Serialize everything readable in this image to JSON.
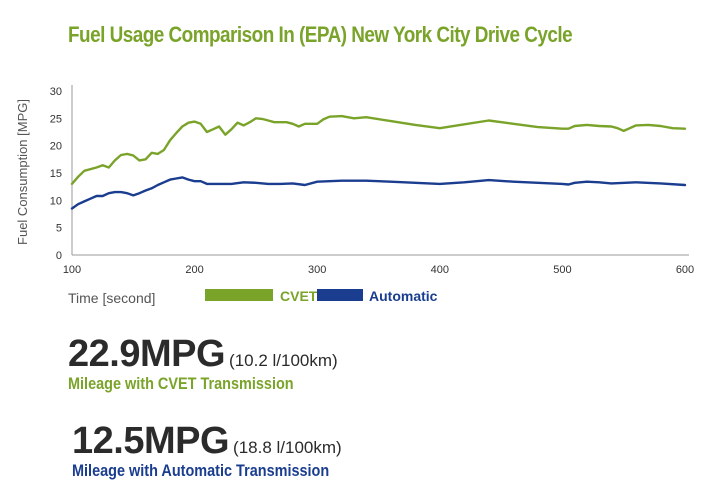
{
  "chart_data": {
    "type": "line",
    "title": "Fuel Usage Comparison In (EPA) New York City Drive Cycle",
    "xlabel": "Time [second]",
    "ylabel": "Fuel Consumption [MPG]",
    "xlim": [
      100,
      600
    ],
    "ylim": [
      0,
      30
    ],
    "xticks": [
      100,
      200,
      300,
      400,
      500,
      600
    ],
    "yticks": [
      0,
      5,
      10,
      15,
      20,
      25,
      30
    ],
    "xtick_labels": [
      "100",
      "200",
      "300",
      "400",
      "500",
      "600"
    ],
    "ytick_labels": [
      "0",
      "5",
      "10",
      "15",
      "20",
      "25",
      "30"
    ],
    "grid": false,
    "legend_position": "bottom",
    "series": [
      {
        "name": "CVET",
        "color": "#7aa32a",
        "x": [
          100,
          105,
          110,
          120,
          125,
          130,
          135,
          140,
          145,
          150,
          155,
          160,
          165,
          170,
          175,
          180,
          185,
          190,
          195,
          200,
          205,
          210,
          215,
          220,
          225,
          230,
          235,
          240,
          245,
          250,
          255,
          260,
          265,
          270,
          275,
          280,
          285,
          290,
          295,
          300,
          305,
          310,
          320,
          330,
          340,
          360,
          380,
          400,
          420,
          440,
          460,
          480,
          500,
          505,
          510,
          520,
          530,
          540,
          545,
          550,
          560,
          570,
          580,
          590,
          600
        ],
        "y": [
          13,
          14.3,
          15.4,
          16,
          16.4,
          16,
          17.3,
          18.3,
          18.5,
          18.2,
          17.3,
          17.5,
          18.7,
          18.5,
          19.2,
          21,
          22.3,
          23.5,
          24.2,
          24.4,
          24,
          22.5,
          23,
          23.5,
          22,
          23,
          24.2,
          23.7,
          24.3,
          25,
          24.9,
          24.6,
          24.3,
          24.3,
          24.3,
          24,
          23.5,
          24,
          24,
          24,
          24.8,
          25.3,
          25.4,
          25,
          25.2,
          24.5,
          23.8,
          23.2,
          23.9,
          24.6,
          24,
          23.4,
          23.1,
          23.1,
          23.6,
          23.8,
          23.6,
          23.5,
          23.2,
          22.7,
          23.7,
          23.8,
          23.6,
          23.2,
          23.1
        ]
      },
      {
        "name": "Automatic",
        "color": "#1a3d8f",
        "x": [
          100,
          105,
          110,
          115,
          120,
          125,
          130,
          135,
          140,
          145,
          150,
          155,
          160,
          165,
          170,
          175,
          180,
          185,
          190,
          195,
          200,
          205,
          210,
          215,
          220,
          230,
          240,
          250,
          260,
          270,
          280,
          290,
          300,
          320,
          340,
          360,
          380,
          400,
          420,
          440,
          460,
          480,
          500,
          505,
          510,
          520,
          530,
          540,
          560,
          580,
          600
        ],
        "y": [
          8.5,
          9.3,
          9.8,
          10.3,
          10.8,
          10.8,
          11.3,
          11.5,
          11.5,
          11.3,
          10.9,
          11.3,
          11.8,
          12.2,
          12.8,
          13.3,
          13.8,
          14,
          14.2,
          13.8,
          13.5,
          13.5,
          13,
          13,
          13,
          13,
          13.3,
          13.2,
          13,
          13,
          13.1,
          12.8,
          13.4,
          13.6,
          13.6,
          13.4,
          13.2,
          13,
          13.3,
          13.7,
          13.4,
          13.2,
          13,
          12.9,
          13.2,
          13.4,
          13.3,
          13.1,
          13.3,
          13.1,
          12.8
        ]
      }
    ]
  },
  "stats": [
    {
      "value": "22.9MPG",
      "metric": "(10.2 l/100km)",
      "caption": "Mileage with CVET Transmission",
      "color": "#7aa32a"
    },
    {
      "value": "12.5MPG",
      "metric": "(18.8 l/100km)",
      "caption": "Mileage with Automatic Transmission",
      "color": "#1a3d8f"
    }
  ]
}
